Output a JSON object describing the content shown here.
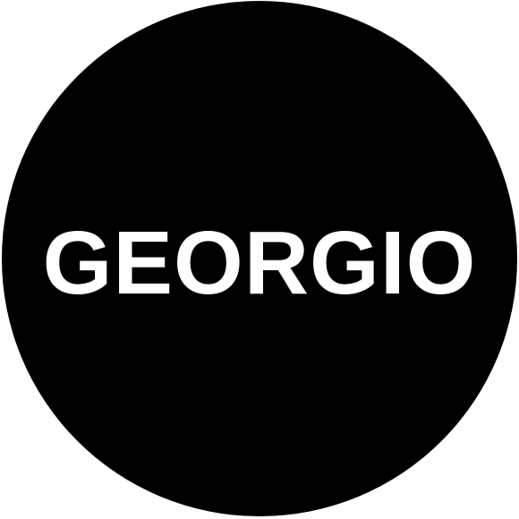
{
  "logo": {
    "text": "GEORGIO",
    "circle_color": "#000000",
    "text_color": "#ffffff",
    "background_color": "#ffffff"
  }
}
